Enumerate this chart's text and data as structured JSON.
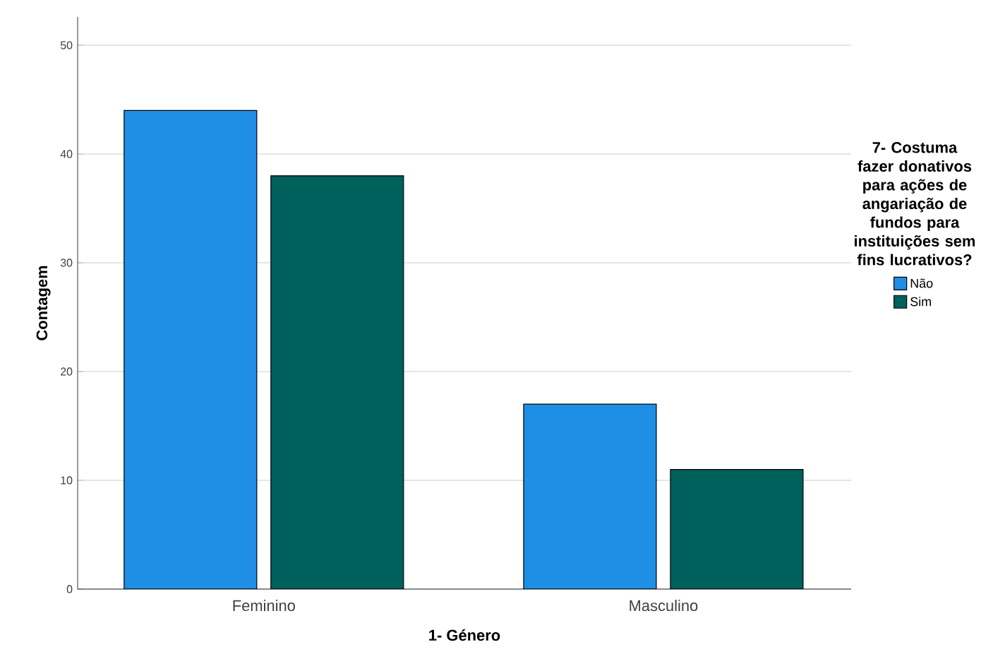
{
  "chart_data": {
    "type": "bar",
    "xlabel": "1- Género",
    "ylabel": "Contagem",
    "legend_title": "7- Costuma fazer donativos para ações de angariação de fundos para instituições sem fins lucrativos?",
    "categories": [
      "Feminino",
      "Masculino"
    ],
    "series": [
      {
        "name": "Não",
        "color": "#1f8fe6",
        "values": [
          44,
          17
        ]
      },
      {
        "name": "Sim",
        "color": "#00605c",
        "values": [
          38,
          11
        ]
      }
    ],
    "ylim": [
      0,
      52.6
    ],
    "yticks": [
      0,
      10,
      20,
      30,
      40,
      50
    ],
    "grid": "y",
    "legend": "right"
  }
}
